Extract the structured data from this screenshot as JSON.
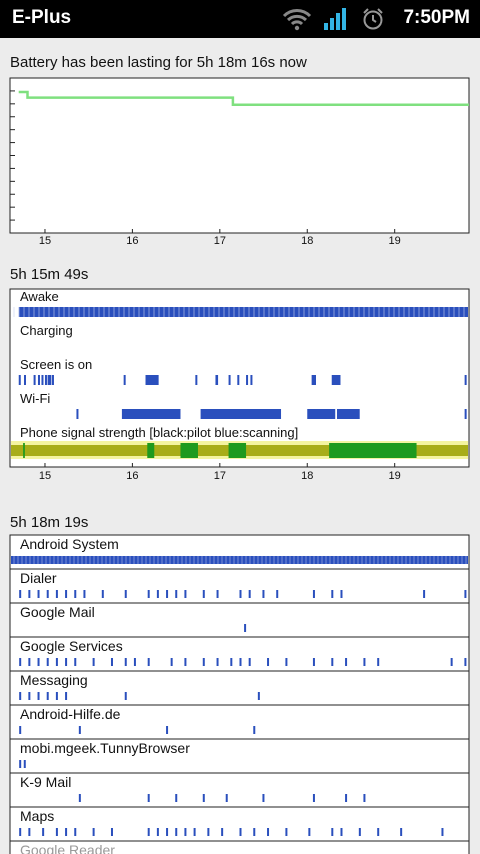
{
  "status_bar": {
    "carrier": "E-Plus",
    "time": "7:50PM",
    "icons": [
      "wifi-icon",
      "signal-icon",
      "alarm-icon"
    ],
    "accent": "#33b5e5"
  },
  "battery": {
    "heading": "Battery has been lasting for 5h 18m 16s now",
    "chart_data": {
      "type": "line",
      "x_ticks": [
        "15",
        "16",
        "17",
        "18",
        "19"
      ],
      "points": [
        [
          14.7,
          100
        ],
        [
          14.8,
          100
        ],
        [
          14.8,
          96
        ],
        [
          17.15,
          96
        ],
        [
          17.15,
          91
        ],
        [
          19.85,
          91
        ]
      ],
      "xlim": [
        14.6,
        19.85
      ],
      "ylim": [
        0,
        100
      ],
      "line_color": "#7fe07f"
    }
  },
  "history": {
    "duration": "5h 15m 49s",
    "x_ticks": [
      "15",
      "16",
      "17",
      "18",
      "19"
    ],
    "rows": [
      {
        "label": "Awake",
        "color": "#2a4fbd",
        "segments": [
          [
            14.7,
            19.85
          ]
        ]
      },
      {
        "label": "Charging",
        "color": "#2a4fbd",
        "segments": []
      },
      {
        "label": "Screen is on",
        "color": "#2a4fbd",
        "segments": [
          [
            14.7,
            14.72
          ],
          [
            14.76,
            14.78
          ],
          [
            14.87,
            14.89
          ],
          [
            14.92,
            14.94
          ],
          [
            14.96,
            14.98
          ],
          [
            15.0,
            15.02
          ],
          [
            15.03,
            15.05
          ],
          [
            15.05,
            15.07
          ],
          [
            15.08,
            15.1
          ],
          [
            15.9,
            15.92
          ],
          [
            16.15,
            16.3
          ],
          [
            16.72,
            16.74
          ],
          [
            16.95,
            16.98
          ],
          [
            17.1,
            17.12
          ],
          [
            17.2,
            17.22
          ],
          [
            17.3,
            17.32
          ],
          [
            17.35,
            17.37
          ],
          [
            18.05,
            18.1
          ],
          [
            18.28,
            18.38
          ],
          [
            19.8,
            19.82
          ]
        ]
      },
      {
        "label": "Wi-Fi",
        "color": "#2a4fbd",
        "segments": [
          [
            15.36,
            15.38
          ],
          [
            15.88,
            16.55
          ],
          [
            16.78,
            17.7
          ],
          [
            18.0,
            18.32
          ],
          [
            18.34,
            18.6
          ],
          [
            19.8,
            19.82
          ]
        ]
      },
      {
        "label": "Phone signal strength [black:pilot blue:scanning]",
        "color": "#a8ad18",
        "segments": [
          [
            14.6,
            19.85
          ]
        ]
      }
    ]
  },
  "apps": {
    "duration": "5h 18m 19s",
    "x_ticks": [],
    "items": [
      {
        "name": "Android System"
      },
      {
        "name": "Dialer"
      },
      {
        "name": "Google Mail"
      },
      {
        "name": "Google Services"
      },
      {
        "name": "Messaging"
      },
      {
        "name": "Android-Hilfe.de"
      },
      {
        "name": "mobi.mgeek.TunnyBrowser"
      },
      {
        "name": "K-9 Mail"
      },
      {
        "name": "Maps"
      },
      {
        "name": "Google Reader"
      }
    ]
  }
}
